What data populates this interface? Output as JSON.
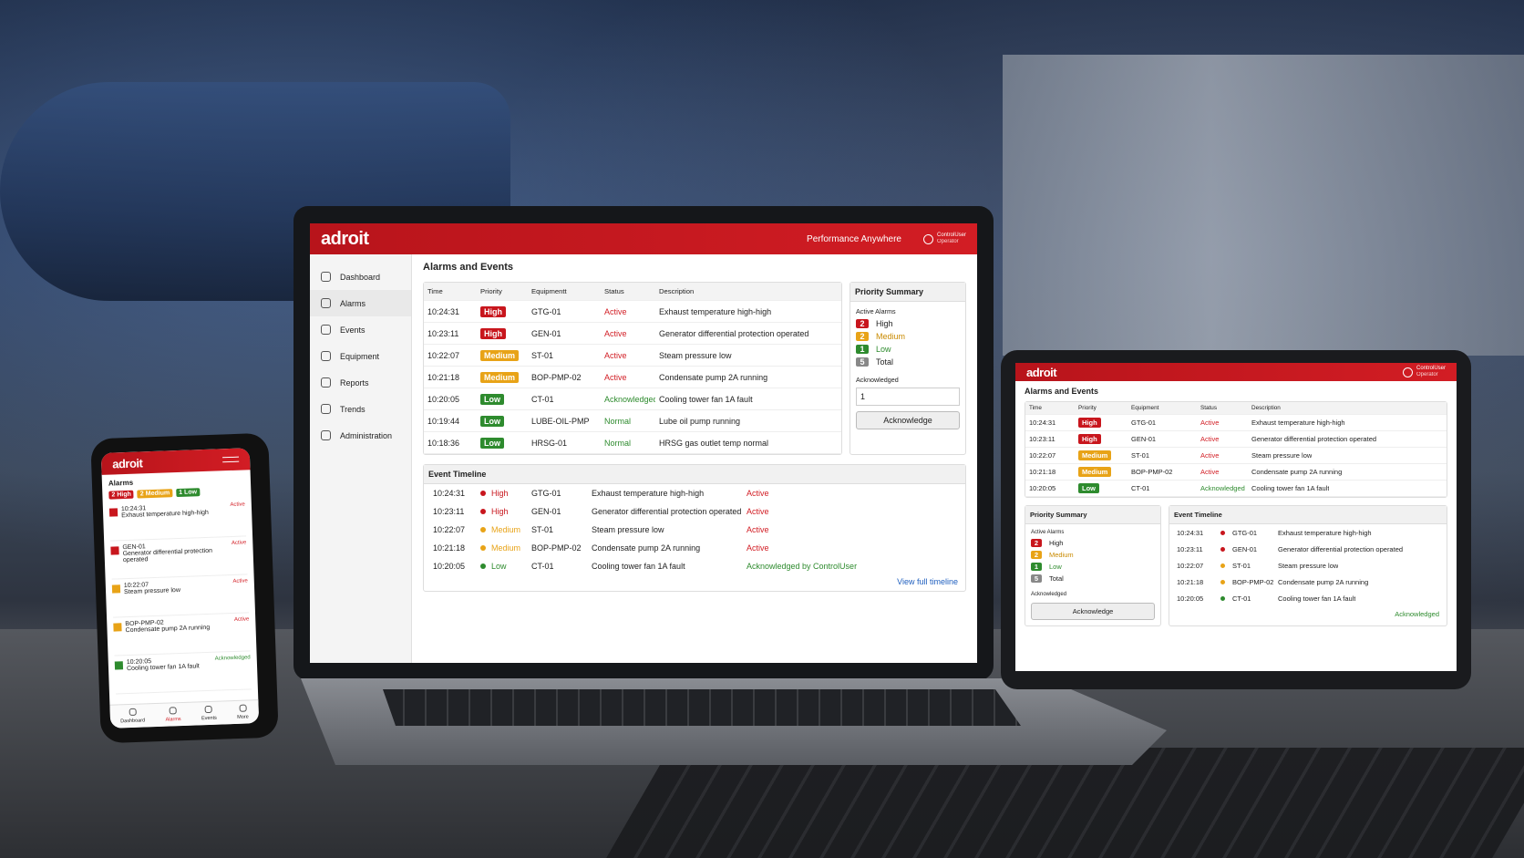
{
  "laptop": {
    "brand": "adroit",
    "tagline": "Performance Anywhere",
    "user": {
      "name": "ControlUser",
      "role": "Operator"
    },
    "nav": [
      "Dashboard",
      "Alarms",
      "Events",
      "Equipment",
      "Reports",
      "Trends",
      "Administration"
    ],
    "page_title": "Alarms and Events",
    "alarm_table": {
      "columns": [
        "Time",
        "Priority",
        "Equipmentt",
        "Status",
        "Description"
      ],
      "rows": [
        [
          "10:24:31",
          "High",
          "GTG-01",
          "Active",
          "Exhaust temperature high-high"
        ],
        [
          "10:23:11",
          "High",
          "GEN-01",
          "Active",
          "Generator differential protection operated"
        ],
        [
          "10:22:07",
          "Medium",
          "ST-01",
          "Active",
          "Steam pressure low"
        ],
        [
          "10:21:18",
          "Medium",
          "BOP-PMP-02",
          "Active",
          "Condensate pump 2A running"
        ],
        [
          "10:20:05",
          "Low",
          "CT-01",
          "Acknowledged",
          "Cooling tower fan 1A fault"
        ],
        [
          "10:19:44",
          "Low",
          "LUBE-OIL-PMP",
          "Normal",
          "Lube oil pump running"
        ],
        [
          "10:18:36",
          "Low",
          "HRSG-01",
          "Normal",
          "HRSG gas outlet temp normal"
        ]
      ]
    },
    "priority_summary": {
      "title": "Priority Summary",
      "subtitle": "Active Alarms",
      "items": [
        {
          "count": 2,
          "label": "High"
        },
        {
          "count": 2,
          "label": "Medium"
        },
        {
          "count": 1,
          "label": "Low"
        },
        {
          "count": 5,
          "label": "Total"
        }
      ],
      "ack_label": "Acknowledged",
      "ack_value": 1,
      "button": "Acknowledge"
    },
    "event_timeline": {
      "title": "Event Timeline",
      "rows": [
        [
          "10:24:31",
          "High",
          "GTG-01",
          "Exhaust temperature high-high",
          "Active"
        ],
        [
          "10:23:11",
          "High",
          "GEN-01",
          "Generator differential protection operated",
          "Active"
        ],
        [
          "10:22:07",
          "Medium",
          "ST-01",
          "Steam pressure low",
          "Active"
        ],
        [
          "10:21:18",
          "Medium",
          "BOP-PMP-02",
          "Condensate pump 2A running",
          "Active"
        ],
        [
          "10:20:05",
          "Low",
          "CT-01",
          "Cooling tower fan 1A fault",
          "Acknowledged by ControlUser"
        ]
      ],
      "link": "View full timeline"
    }
  },
  "tablet": {
    "brand": "adroit",
    "user": {
      "name": "ControlUser",
      "role": "Operator"
    },
    "page_title": "Alarms and Events",
    "alarm_table": {
      "columns": [
        "Time",
        "Priority",
        "Equipment",
        "Status",
        "Description"
      ],
      "rows": [
        [
          "10:24:31",
          "High",
          "GTG-01",
          "Active",
          "Exhaust temperature high-high"
        ],
        [
          "10:23:11",
          "High",
          "GEN-01",
          "Active",
          "Generator differential protection operated"
        ],
        [
          "10:22:07",
          "Medium",
          "ST-01",
          "Active",
          "Steam pressure low"
        ],
        [
          "10:21:18",
          "Medium",
          "BOP-PMP-02",
          "Active",
          "Condensate pump 2A running"
        ],
        [
          "10:20:05",
          "Low",
          "CT-01",
          "Acknowledged",
          "Cooling tower fan 1A fault"
        ]
      ]
    },
    "priority_summary": {
      "title": "Priority Summary",
      "subtitle": "Active Alarms",
      "items": [
        {
          "count": 2,
          "label": "High"
        },
        {
          "count": 2,
          "label": "Medium"
        },
        {
          "count": 1,
          "label": "Low"
        },
        {
          "count": 5,
          "label": "Total"
        }
      ],
      "ack_label": "Acknowledged",
      "button": "Acknowledge"
    },
    "event_timeline": {
      "title": "Event Timeline",
      "rows": [
        [
          "10:24:31",
          "GTG-01",
          "Exhaust temperature high-high"
        ],
        [
          "10:23:11",
          "GEN-01",
          "Generator differential protection operated"
        ],
        [
          "10:22:07",
          "ST-01",
          "Steam pressure low"
        ],
        [
          "10:21:18",
          "BOP-PMP-02",
          "Condensate pump 2A running"
        ],
        [
          "10:20:05",
          "CT-01",
          "Cooling tower fan 1A fault"
        ]
      ],
      "footer_status": "Acknowledged"
    }
  },
  "phone": {
    "brand": "adroit",
    "page_title": "Alarms",
    "chips": [
      {
        "count": 2,
        "label": "High"
      },
      {
        "count": 2,
        "label": "Medium"
      },
      {
        "count": 1,
        "label": "Low"
      }
    ],
    "items": [
      {
        "head": "10:24:31",
        "desc": "Exhaust temperature high-high",
        "status": "Active",
        "priority": "High"
      },
      {
        "head": "GEN-01",
        "desc": "Generator differential protection operated",
        "status": "Active",
        "priority": "High"
      },
      {
        "head": "10:22:07",
        "desc": "Steam pressure low",
        "status": "Active",
        "priority": "Medium"
      },
      {
        "head": "BOP-PMP-02",
        "desc": "Condensate pump 2A running",
        "status": "Active",
        "priority": "Medium"
      },
      {
        "head": "10:20:05",
        "desc": "Cooling tower fan 1A fault",
        "status": "Acknowledged",
        "priority": "Low"
      }
    ],
    "nav": [
      "Dashboard",
      "Alarms",
      "Events",
      "More"
    ]
  }
}
